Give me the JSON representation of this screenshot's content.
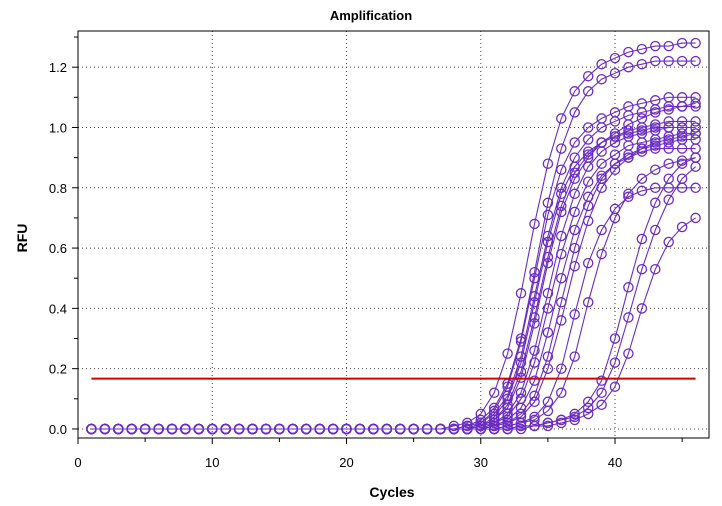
{
  "chart_data": {
    "type": "line",
    "title": "Amplification",
    "xlabel": "Cycles",
    "ylabel": "RFU",
    "xlim": [
      0,
      47
    ],
    "ylim": [
      -0.03,
      1.32
    ],
    "xticks": [
      0,
      10,
      20,
      30,
      40
    ],
    "yticks": [
      0.0,
      0.2,
      0.4,
      0.6,
      0.8,
      1.0,
      1.2
    ],
    "ytick_labels": [
      "0.0",
      "0.2",
      "0.4",
      "0.6",
      "0.8",
      "1.0",
      "1.2"
    ],
    "grid": true,
    "cycles": [
      1,
      2,
      3,
      4,
      5,
      6,
      7,
      8,
      9,
      10,
      11,
      12,
      13,
      14,
      15,
      16,
      17,
      18,
      19,
      20,
      21,
      22,
      23,
      24,
      25,
      26,
      27,
      28,
      29,
      30,
      31,
      32,
      33,
      34,
      35,
      36,
      37,
      38,
      39,
      40,
      41,
      42,
      43,
      44,
      45,
      46
    ],
    "series": [
      {
        "values": [
          0.0,
          0.0,
          0.0,
          0.0,
          0.0,
          0.0,
          0.0,
          0.0,
          0.0,
          0.0,
          0.0,
          0.0,
          0.0,
          0.0,
          0.0,
          0.0,
          0.0,
          0.0,
          0.0,
          0.0,
          0.0,
          0.0,
          0.0,
          0.0,
          0.0,
          0.0,
          0.0,
          0.01,
          0.02,
          0.05,
          0.12,
          0.25,
          0.45,
          0.68,
          0.88,
          1.03,
          1.12,
          1.17,
          1.21,
          1.23,
          1.25,
          1.26,
          1.27,
          1.27,
          1.28,
          1.28
        ]
      },
      {
        "values": [
          0.0,
          0.0,
          0.0,
          0.0,
          0.0,
          0.0,
          0.0,
          0.0,
          0.0,
          0.0,
          0.0,
          0.0,
          0.0,
          0.0,
          0.0,
          0.0,
          0.0,
          0.0,
          0.0,
          0.0,
          0.0,
          0.0,
          0.0,
          0.0,
          0.0,
          0.0,
          0.0,
          0.0,
          0.01,
          0.03,
          0.07,
          0.15,
          0.3,
          0.52,
          0.75,
          0.93,
          1.05,
          1.12,
          1.16,
          1.18,
          1.2,
          1.21,
          1.22,
          1.22,
          1.22,
          1.22
        ]
      },
      {
        "values": [
          0.0,
          0.0,
          0.0,
          0.0,
          0.0,
          0.0,
          0.0,
          0.0,
          0.0,
          0.0,
          0.0,
          0.0,
          0.0,
          0.0,
          0.0,
          0.0,
          0.0,
          0.0,
          0.0,
          0.0,
          0.0,
          0.0,
          0.0,
          0.0,
          0.0,
          0.0,
          0.0,
          0.0,
          0.01,
          0.02,
          0.06,
          0.14,
          0.29,
          0.5,
          0.71,
          0.86,
          0.95,
          1.0,
          1.03,
          1.05,
          1.07,
          1.08,
          1.09,
          1.1,
          1.1,
          1.1
        ]
      },
      {
        "values": [
          0.0,
          0.0,
          0.0,
          0.0,
          0.0,
          0.0,
          0.0,
          0.0,
          0.0,
          0.0,
          0.0,
          0.0,
          0.0,
          0.0,
          0.0,
          0.0,
          0.0,
          0.0,
          0.0,
          0.0,
          0.0,
          0.0,
          0.0,
          0.0,
          0.0,
          0.0,
          0.0,
          0.0,
          0.0,
          0.02,
          0.05,
          0.11,
          0.24,
          0.44,
          0.64,
          0.8,
          0.9,
          0.96,
          1.0,
          1.02,
          1.04,
          1.05,
          1.06,
          1.07,
          1.07,
          1.07
        ]
      },
      {
        "values": [
          0.0,
          0.0,
          0.0,
          0.0,
          0.0,
          0.0,
          0.0,
          0.0,
          0.0,
          0.0,
          0.0,
          0.0,
          0.0,
          0.0,
          0.0,
          0.0,
          0.0,
          0.0,
          0.0,
          0.0,
          0.0,
          0.0,
          0.0,
          0.0,
          0.0,
          0.0,
          0.0,
          0.0,
          0.0,
          0.01,
          0.04,
          0.1,
          0.22,
          0.42,
          0.62,
          0.78,
          0.87,
          0.92,
          0.95,
          0.97,
          0.98,
          0.99,
          1.0,
          1.0,
          1.0,
          1.0
        ]
      },
      {
        "values": [
          0.0,
          0.0,
          0.0,
          0.0,
          0.0,
          0.0,
          0.0,
          0.0,
          0.0,
          0.0,
          0.0,
          0.0,
          0.0,
          0.0,
          0.0,
          0.0,
          0.0,
          0.0,
          0.0,
          0.0,
          0.0,
          0.0,
          0.0,
          0.0,
          0.0,
          0.0,
          0.0,
          0.0,
          0.0,
          0.01,
          0.03,
          0.08,
          0.19,
          0.37,
          0.57,
          0.74,
          0.85,
          0.91,
          0.95,
          0.97,
          0.99,
          1.0,
          1.01,
          1.02,
          1.02,
          1.02
        ]
      },
      {
        "values": [
          0.0,
          0.0,
          0.0,
          0.0,
          0.0,
          0.0,
          0.0,
          0.0,
          0.0,
          0.0,
          0.0,
          0.0,
          0.0,
          0.0,
          0.0,
          0.0,
          0.0,
          0.0,
          0.0,
          0.0,
          0.0,
          0.0,
          0.0,
          0.0,
          0.0,
          0.0,
          0.0,
          0.0,
          0.0,
          0.01,
          0.03,
          0.07,
          0.17,
          0.35,
          0.55,
          0.72,
          0.83,
          0.9,
          0.95,
          0.98,
          1.01,
          1.03,
          1.05,
          1.06,
          1.07,
          1.08
        ]
      },
      {
        "values": [
          0.0,
          0.0,
          0.0,
          0.0,
          0.0,
          0.0,
          0.0,
          0.0,
          0.0,
          0.0,
          0.0,
          0.0,
          0.0,
          0.0,
          0.0,
          0.0,
          0.0,
          0.0,
          0.0,
          0.0,
          0.0,
          0.0,
          0.0,
          0.0,
          0.0,
          0.0,
          0.0,
          0.0,
          0.0,
          0.01,
          0.02,
          0.05,
          0.12,
          0.26,
          0.45,
          0.64,
          0.78,
          0.87,
          0.92,
          0.95,
          0.97,
          0.98,
          0.99,
          1.0,
          1.0,
          1.0
        ]
      },
      {
        "values": [
          0.0,
          0.0,
          0.0,
          0.0,
          0.0,
          0.0,
          0.0,
          0.0,
          0.0,
          0.0,
          0.0,
          0.0,
          0.0,
          0.0,
          0.0,
          0.0,
          0.0,
          0.0,
          0.0,
          0.0,
          0.0,
          0.0,
          0.0,
          0.0,
          0.0,
          0.0,
          0.0,
          0.0,
          0.0,
          0.0,
          0.02,
          0.04,
          0.1,
          0.22,
          0.4,
          0.58,
          0.72,
          0.82,
          0.88,
          0.91,
          0.94,
          0.95,
          0.96,
          0.97,
          0.98,
          0.98
        ]
      },
      {
        "values": [
          0.0,
          0.0,
          0.0,
          0.0,
          0.0,
          0.0,
          0.0,
          0.0,
          0.0,
          0.0,
          0.0,
          0.0,
          0.0,
          0.0,
          0.0,
          0.0,
          0.0,
          0.0,
          0.0,
          0.0,
          0.0,
          0.0,
          0.0,
          0.0,
          0.0,
          0.0,
          0.0,
          0.0,
          0.0,
          0.0,
          0.01,
          0.03,
          0.07,
          0.16,
          0.32,
          0.5,
          0.66,
          0.77,
          0.84,
          0.88,
          0.9,
          0.92,
          0.93,
          0.93,
          0.93,
          0.93
        ]
      },
      {
        "values": [
          0.0,
          0.0,
          0.0,
          0.0,
          0.0,
          0.0,
          0.0,
          0.0,
          0.0,
          0.0,
          0.0,
          0.0,
          0.0,
          0.0,
          0.0,
          0.0,
          0.0,
          0.0,
          0.0,
          0.0,
          0.0,
          0.0,
          0.0,
          0.0,
          0.0,
          0.0,
          0.0,
          0.0,
          0.0,
          0.0,
          0.01,
          0.02,
          0.05,
          0.11,
          0.24,
          0.42,
          0.6,
          0.74,
          0.83,
          0.88,
          0.91,
          0.93,
          0.94,
          0.95,
          0.96,
          0.96
        ]
      },
      {
        "values": [
          0.0,
          0.0,
          0.0,
          0.0,
          0.0,
          0.0,
          0.0,
          0.0,
          0.0,
          0.0,
          0.0,
          0.0,
          0.0,
          0.0,
          0.0,
          0.0,
          0.0,
          0.0,
          0.0,
          0.0,
          0.0,
          0.0,
          0.0,
          0.0,
          0.0,
          0.0,
          0.0,
          0.0,
          0.0,
          0.0,
          0.01,
          0.02,
          0.04,
          0.09,
          0.2,
          0.36,
          0.54,
          0.69,
          0.8,
          0.86,
          0.9,
          0.93,
          0.95,
          0.96,
          0.97,
          0.98
        ]
      },
      {
        "values": [
          0.0,
          0.0,
          0.0,
          0.0,
          0.0,
          0.0,
          0.0,
          0.0,
          0.0,
          0.0,
          0.0,
          0.0,
          0.0,
          0.0,
          0.0,
          0.0,
          0.0,
          0.0,
          0.0,
          0.0,
          0.0,
          0.0,
          0.0,
          0.0,
          0.0,
          0.0,
          0.0,
          0.0,
          0.0,
          0.0,
          0.0,
          0.01,
          0.02,
          0.04,
          0.09,
          0.2,
          0.38,
          0.55,
          0.66,
          0.73,
          0.77,
          0.79,
          0.8,
          0.8,
          0.8,
          0.8
        ]
      },
      {
        "values": [
          0.0,
          0.0,
          0.0,
          0.0,
          0.0,
          0.0,
          0.0,
          0.0,
          0.0,
          0.0,
          0.0,
          0.0,
          0.0,
          0.0,
          0.0,
          0.0,
          0.0,
          0.0,
          0.0,
          0.0,
          0.0,
          0.0,
          0.0,
          0.0,
          0.0,
          0.0,
          0.0,
          0.0,
          0.0,
          0.0,
          0.0,
          0.01,
          0.02,
          0.03,
          0.06,
          0.12,
          0.24,
          0.42,
          0.58,
          0.7,
          0.78,
          0.83,
          0.86,
          0.88,
          0.89,
          0.9
        ]
      },
      {
        "values": [
          0.0,
          0.0,
          0.0,
          0.0,
          0.0,
          0.0,
          0.0,
          0.0,
          0.0,
          0.0,
          0.0,
          0.0,
          0.0,
          0.0,
          0.0,
          0.0,
          0.0,
          0.0,
          0.0,
          0.0,
          0.0,
          0.0,
          0.0,
          0.0,
          0.0,
          0.0,
          0.0,
          0.0,
          0.0,
          0.0,
          0.0,
          0.0,
          0.01,
          0.01,
          0.02,
          0.03,
          0.05,
          0.09,
          0.16,
          0.3,
          0.47,
          0.63,
          0.75,
          0.83,
          0.88,
          0.9
        ]
      },
      {
        "values": [
          0.0,
          0.0,
          0.0,
          0.0,
          0.0,
          0.0,
          0.0,
          0.0,
          0.0,
          0.0,
          0.0,
          0.0,
          0.0,
          0.0,
          0.0,
          0.0,
          0.0,
          0.0,
          0.0,
          0.0,
          0.0,
          0.0,
          0.0,
          0.0,
          0.0,
          0.0,
          0.0,
          0.0,
          0.0,
          0.0,
          0.0,
          0.0,
          0.01,
          0.01,
          0.02,
          0.03,
          0.04,
          0.07,
          0.12,
          0.22,
          0.37,
          0.53,
          0.66,
          0.76,
          0.83,
          0.87
        ]
      },
      {
        "values": [
          0.0,
          0.0,
          0.0,
          0.0,
          0.0,
          0.0,
          0.0,
          0.0,
          0.0,
          0.0,
          0.0,
          0.0,
          0.0,
          0.0,
          0.0,
          0.0,
          0.0,
          0.0,
          0.0,
          0.0,
          0.0,
          0.0,
          0.0,
          0.0,
          0.0,
          0.0,
          0.0,
          0.0,
          0.0,
          0.0,
          0.0,
          0.0,
          0.0,
          0.01,
          0.01,
          0.02,
          0.03,
          0.05,
          0.08,
          0.14,
          0.25,
          0.4,
          0.53,
          0.62,
          0.67,
          0.7
        ]
      }
    ],
    "threshold": {
      "y": 0.167,
      "color": "#d40000"
    },
    "series_color": "#6a2cc2"
  }
}
